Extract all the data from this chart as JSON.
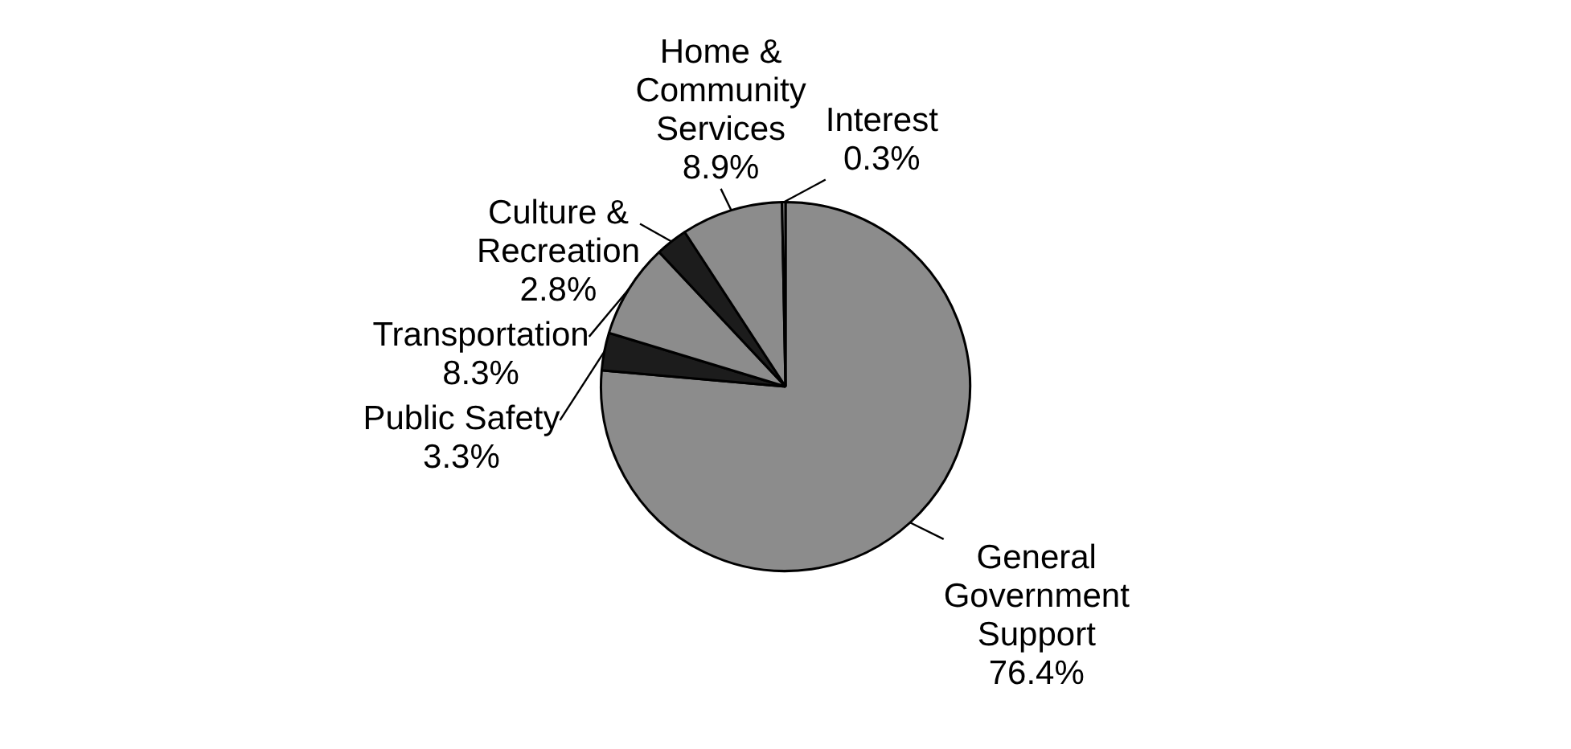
{
  "chart_data": {
    "type": "pie",
    "categories": [
      "General Government Support",
      "Public Safety",
      "Transportation",
      "Culture & Recreation",
      "Home & Community Services",
      "Interest"
    ],
    "values": [
      76.4,
      3.3,
      8.3,
      2.8,
      8.9,
      0.3
    ],
    "colors": [
      "#8c8c8c",
      "#1c1c1c",
      "#8c8c8c",
      "#1c1c1c",
      "#8c8c8c",
      "#8c8c8c"
    ],
    "value_labels": [
      "76.4%",
      "3.3%",
      "8.3%",
      "2.8%",
      "8.9%",
      "0.3%"
    ],
    "legend": false
  }
}
